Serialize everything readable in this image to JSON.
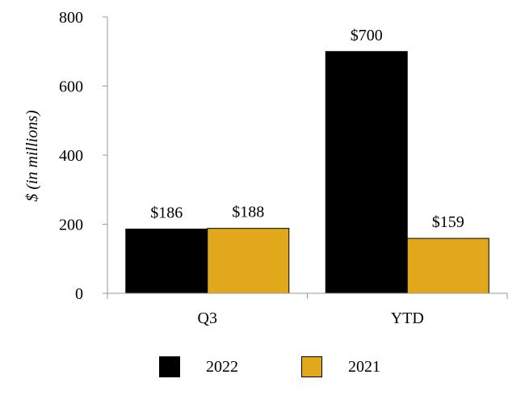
{
  "chart_data": {
    "type": "bar",
    "title": "",
    "xlabel": "",
    "ylabel": "$ (in millions)",
    "ylim": [
      0,
      800
    ],
    "yticks": [
      0,
      200,
      400,
      600,
      800
    ],
    "categories": [
      "Q3",
      "YTD"
    ],
    "series": [
      {
        "name": "2022",
        "color": "#000000",
        "values": [
          186,
          700
        ],
        "labels": [
          "$186",
          "$700"
        ]
      },
      {
        "name": "2021",
        "color": "#E2A81C",
        "values": [
          188,
          159
        ],
        "labels": [
          "$188",
          "$159"
        ]
      }
    ],
    "grid": false,
    "legend_position": "bottom"
  }
}
